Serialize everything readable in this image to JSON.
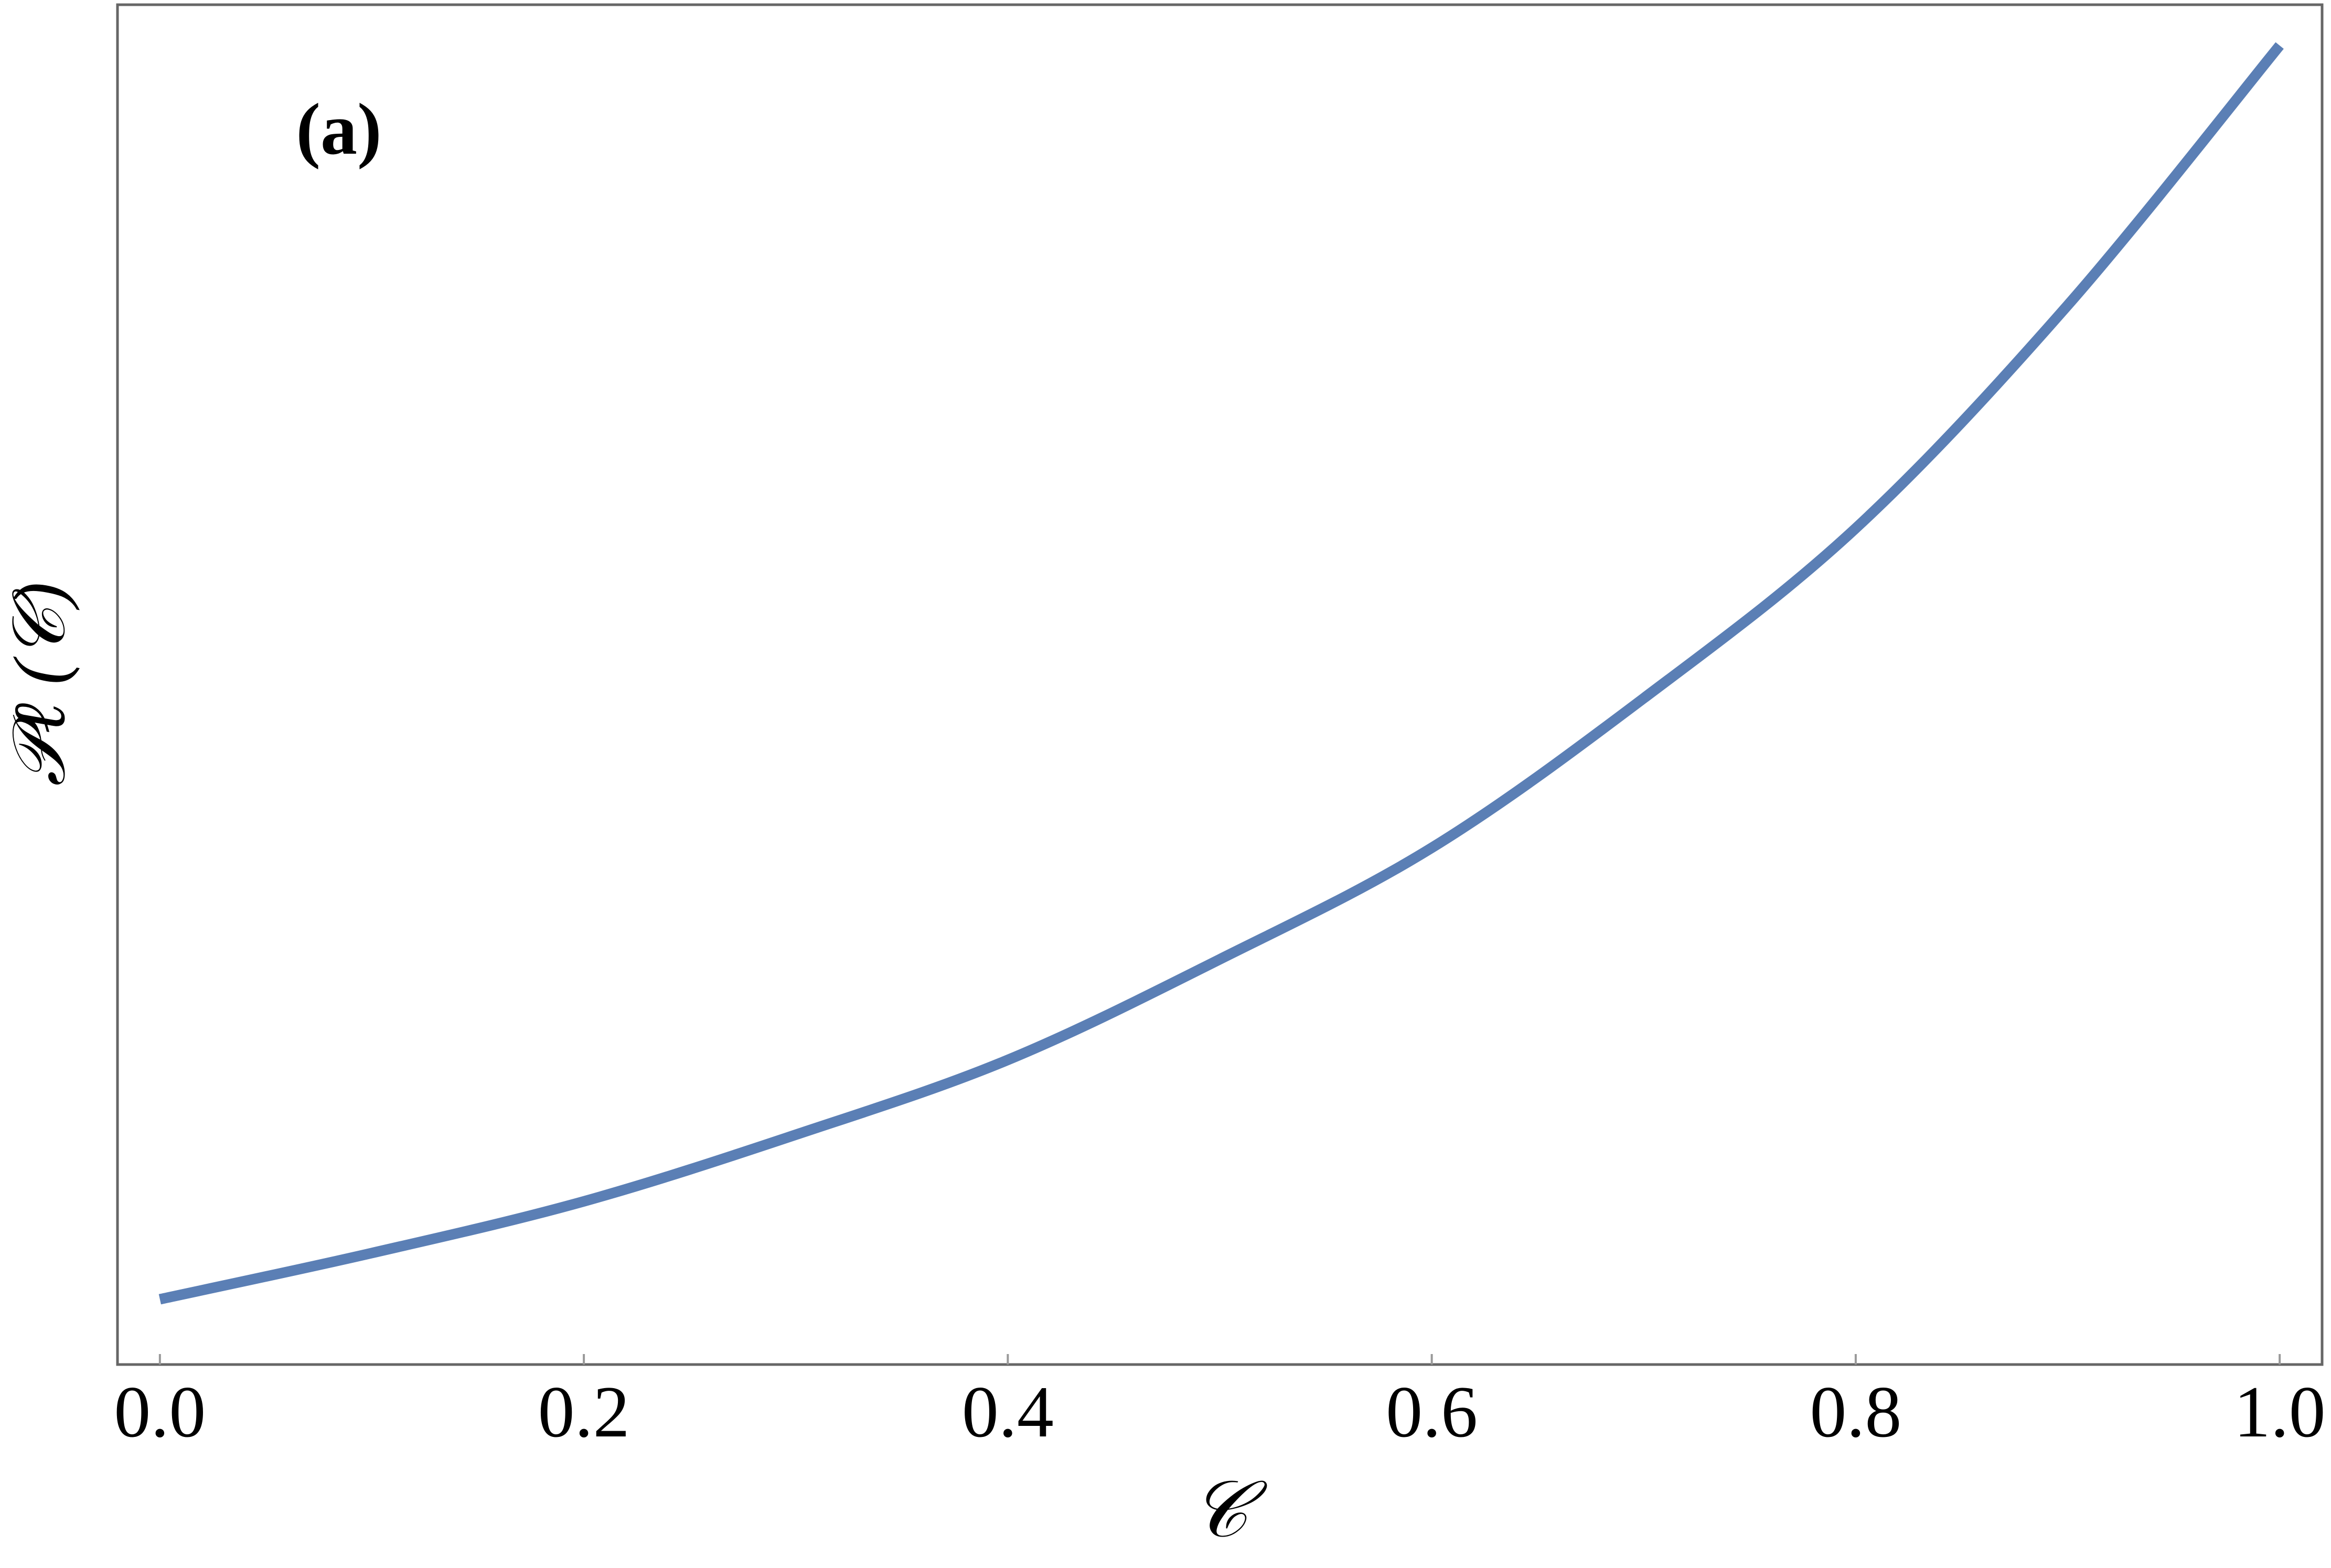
{
  "chart_data": {
    "type": "line",
    "annotation": "(a)",
    "x_label": "𝒞",
    "y_label": "𝒫ℓ (𝒞)",
    "x": [
      0,
      0.1,
      0.2,
      0.3,
      0.4,
      0.5,
      0.6,
      0.7,
      0.8,
      0.9,
      1.0
    ],
    "series": [
      {
        "color": "#5b7fb5",
        "values": [
          0.048,
          0.082,
          0.12,
          0.169,
          0.224,
          0.298,
          0.38,
          0.49,
          0.615,
          0.779,
          0.97
        ]
      }
    ],
    "xlim": [
      -0.02,
      1.02
    ],
    "ylim": [
      0,
      1
    ],
    "xticks": [
      {
        "value": 0,
        "label": "0.0"
      },
      0.2,
      0.4,
      0.6,
      0.8,
      {
        "value": 1,
        "label": "1.0"
      }
    ]
  }
}
